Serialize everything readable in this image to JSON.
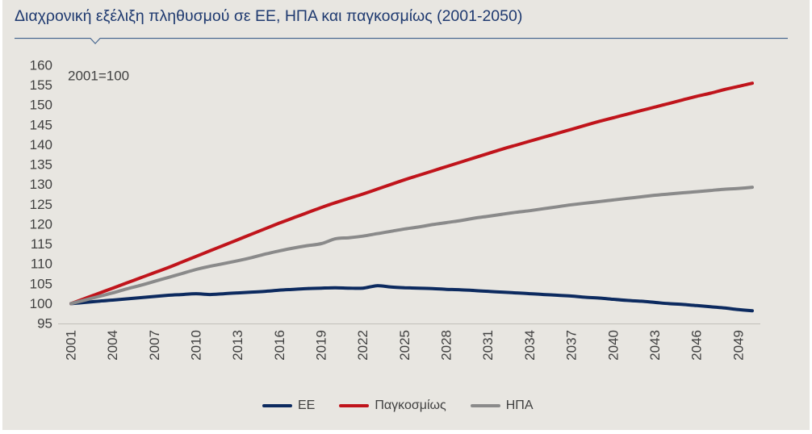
{
  "colors": {
    "background": "#e8e6e1",
    "title": "#1f3a70",
    "rule": "#4b6a92",
    "text": "#404040",
    "axis_line": "#c2c0ba"
  },
  "chart_data": {
    "type": "line",
    "title": "Διαχρονική εξέλιξη πληθυσμού σε ΕΕ, ΗΠΑ και παγκοσμίως (2001-2050)",
    "annotation": "2001=100",
    "x": [
      2001,
      2002,
      2003,
      2004,
      2005,
      2006,
      2007,
      2008,
      2009,
      2010,
      2011,
      2012,
      2013,
      2014,
      2015,
      2016,
      2017,
      2018,
      2019,
      2020,
      2021,
      2022,
      2023,
      2024,
      2025,
      2026,
      2027,
      2028,
      2029,
      2030,
      2031,
      2032,
      2033,
      2034,
      2035,
      2036,
      2037,
      2038,
      2039,
      2040,
      2041,
      2042,
      2043,
      2044,
      2045,
      2046,
      2047,
      2048,
      2049,
      2050
    ],
    "x_tick_labels": [
      "2001",
      "2004",
      "2007",
      "2010",
      "2013",
      "2016",
      "2019",
      "2022",
      "2025",
      "2028",
      "2031",
      "2034",
      "2037",
      "2040",
      "2043",
      "2046",
      "2049"
    ],
    "y_ticks": [
      95,
      100,
      105,
      110,
      115,
      120,
      125,
      130,
      135,
      140,
      145,
      150,
      155,
      160
    ],
    "ylim": [
      95,
      160
    ],
    "grid": false,
    "legend_position": "bottom",
    "series": [
      {
        "name": "ΕΕ",
        "color": "#0c2a5f",
        "values": [
          100.0,
          100.3,
          100.6,
          100.9,
          101.2,
          101.5,
          101.8,
          102.1,
          102.3,
          102.5,
          102.3,
          102.5,
          102.7,
          102.9,
          103.1,
          103.4,
          103.6,
          103.8,
          103.9,
          104.0,
          103.9,
          103.9,
          104.5,
          104.2,
          104.0,
          103.9,
          103.8,
          103.6,
          103.5,
          103.3,
          103.1,
          102.9,
          102.7,
          102.5,
          102.3,
          102.1,
          101.9,
          101.6,
          101.4,
          101.1,
          100.8,
          100.6,
          100.3,
          100.0,
          99.8,
          99.5,
          99.2,
          98.9,
          98.5,
          98.2
        ]
      },
      {
        "name": "Παγκοσμίως",
        "color": "#c0141b",
        "values": [
          100.0,
          101.3,
          102.6,
          103.9,
          105.2,
          106.5,
          107.8,
          109.1,
          110.5,
          111.9,
          113.3,
          114.7,
          116.1,
          117.5,
          118.9,
          120.3,
          121.6,
          122.9,
          124.2,
          125.4,
          126.5,
          127.6,
          128.8,
          130.0,
          131.2,
          132.3,
          133.4,
          134.5,
          135.6,
          136.7,
          137.8,
          138.9,
          139.9,
          140.9,
          141.9,
          142.9,
          143.9,
          144.9,
          145.9,
          146.8,
          147.7,
          148.6,
          149.5,
          150.4,
          151.3,
          152.2,
          153.0,
          153.9,
          154.7,
          155.5
        ]
      },
      {
        "name": "ΗΠΑ",
        "color": "#8a8a8a",
        "values": [
          100.0,
          100.9,
          101.8,
          102.7,
          103.7,
          104.6,
          105.6,
          106.6,
          107.6,
          108.6,
          109.4,
          110.1,
          110.8,
          111.6,
          112.5,
          113.3,
          114.0,
          114.6,
          115.1,
          116.3,
          116.6,
          117.0,
          117.6,
          118.2,
          118.8,
          119.3,
          119.9,
          120.4,
          120.9,
          121.5,
          122.0,
          122.5,
          123.0,
          123.4,
          123.9,
          124.4,
          124.9,
          125.3,
          125.7,
          126.1,
          126.5,
          126.9,
          127.3,
          127.6,
          127.9,
          128.2,
          128.5,
          128.8,
          129.0,
          129.3
        ]
      }
    ]
  }
}
